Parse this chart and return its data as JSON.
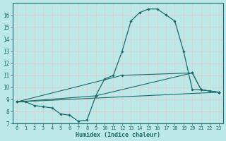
{
  "xlabel": "Humidex (Indice chaleur)",
  "xlim": [
    -0.5,
    23.5
  ],
  "ylim": [
    7,
    17
  ],
  "yticks": [
    7,
    8,
    9,
    10,
    11,
    12,
    13,
    14,
    15,
    16
  ],
  "xticks": [
    0,
    1,
    2,
    3,
    4,
    5,
    6,
    7,
    8,
    9,
    10,
    11,
    12,
    13,
    14,
    15,
    16,
    17,
    18,
    19,
    20,
    21,
    22,
    23
  ],
  "bg_color": "#bde8e8",
  "line_color": "#1a6b6b",
  "grid_color": "#e8c8c8",
  "lines": [
    {
      "x": [
        0,
        1,
        2,
        3,
        4,
        5,
        6,
        7,
        8,
        9,
        10,
        11,
        12,
        13,
        14,
        15,
        16,
        17,
        18,
        19,
        20,
        21,
        22,
        23
      ],
      "y": [
        8.8,
        8.8,
        8.5,
        8.4,
        8.3,
        7.8,
        7.7,
        7.2,
        7.3,
        9.3,
        10.7,
        11.0,
        13.0,
        15.5,
        16.2,
        16.5,
        16.5,
        16.0,
        15.5,
        13.0,
        9.8,
        9.8,
        9.7,
        9.6
      ],
      "marker": "D",
      "markersize": 1.8,
      "linewidth": 0.9
    },
    {
      "x": [
        0,
        23
      ],
      "y": [
        8.8,
        9.6
      ],
      "marker": null,
      "markersize": 0,
      "linewidth": 0.8
    },
    {
      "x": [
        0,
        9,
        20,
        21,
        23
      ],
      "y": [
        8.8,
        9.3,
        11.2,
        9.8,
        9.6
      ],
      "marker": "D",
      "markersize": 1.8,
      "linewidth": 0.8
    },
    {
      "x": [
        0,
        12,
        20,
        21,
        23
      ],
      "y": [
        8.8,
        11.0,
        11.2,
        9.8,
        9.6
      ],
      "marker": "D",
      "markersize": 1.8,
      "linewidth": 0.8
    }
  ]
}
